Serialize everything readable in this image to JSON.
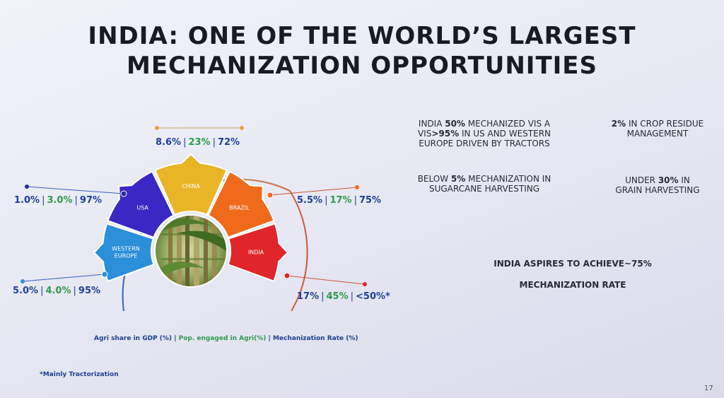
{
  "title": {
    "line1": "INDIA: ONE OF THE WORLD’S LARGEST",
    "line2": "MECHANIZATION OPPORTUNITIES"
  },
  "wheel": {
    "center_image": "sugarcane-image",
    "segments": [
      {
        "name": "western-europe",
        "label1": "WESTERN",
        "label2": "EUROPE",
        "color": "#2b8fd9",
        "agri": "5.0%",
        "pop": "4.0%",
        "mech": "95%"
      },
      {
        "name": "usa",
        "label1": "USA",
        "label2": "",
        "color": "#3b27c4",
        "agri": "1.0%",
        "pop": "3.0%",
        "mech": "97%"
      },
      {
        "name": "china",
        "label1": "CHINA",
        "label2": "",
        "color": "#e9b526",
        "agri": "8.6%",
        "pop": "23%",
        "mech": "72%"
      },
      {
        "name": "brazil",
        "label1": "BRAZIL",
        "label2": "",
        "color": "#f06a1c",
        "agri": "5.5%",
        "pop": "17%",
        "mech": "75%"
      },
      {
        "name": "india",
        "label1": "INDIA",
        "label2": "",
        "color": "#e0262a",
        "agri": "17%",
        "pop": "45%",
        "mech": "<50%*"
      }
    ]
  },
  "info": {
    "box1": {
      "pre1": "INDIA ",
      "bold1": "50%",
      "post1": " MECHANIZED VIS A",
      "pre2": "VIS",
      "bold2": ">95%",
      "post2": " IN US AND WESTERN",
      "line3": "EUROPE DRIVEN BY TRACTORS"
    },
    "box2": {
      "bold": "2%",
      "post1": " IN CROP RESIDUE",
      "line2": "MANAGEMENT"
    },
    "box3": {
      "pre": "BELOW ",
      "bold": "5%",
      "post": " MECHANIZATION IN",
      "line2": "SUGARCANE HARVESTING"
    },
    "box4": {
      "pre": "UNDER ",
      "bold": "30%",
      "post": " IN",
      "line2": "GRAIN HARVESTING"
    },
    "aspire1": "INDIA ASPIRES TO ACHIEVE~75%",
    "aspire2": "MECHANIZATION RATE"
  },
  "legend": {
    "agri": "Agri share in GDP (%)",
    "pop": "Pop. engaged in Agri(%)",
    "mech": "Mechanization Rate (%)",
    "sep": "|"
  },
  "footnote": "*Mainly Tractorization",
  "page_number": "17",
  "colors": {
    "blue_text": "#1f3f93",
    "green_text": "#2f9a4f",
    "arc_left": "#3a5ec4",
    "arc_right": "#c8573a"
  }
}
